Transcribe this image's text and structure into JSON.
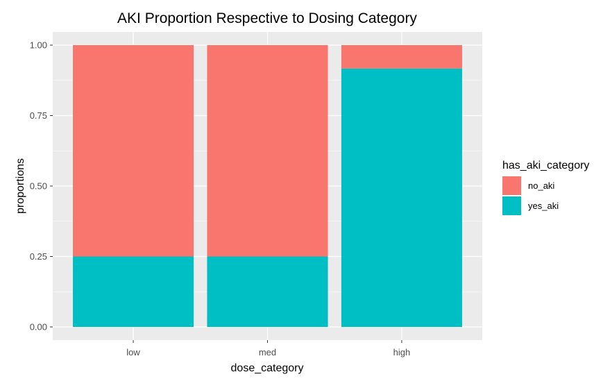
{
  "chart_data": {
    "type": "bar",
    "stacked": true,
    "title": "AKI Proportion Respective to Dosing Category",
    "xlabel": "dose_category",
    "ylabel": "proportions",
    "categories": [
      "low",
      "med",
      "high"
    ],
    "series": [
      {
        "name": "no_aki",
        "values": [
          0.75,
          0.75,
          0.083
        ],
        "color": "#F8766D"
      },
      {
        "name": "yes_aki",
        "values": [
          0.25,
          0.25,
          0.917
        ],
        "color": "#00BFC4"
      }
    ],
    "ylim": [
      0,
      1
    ],
    "yticks": [
      0,
      0.25,
      0.5,
      0.75,
      1
    ],
    "ytick_labels": [
      "0.00",
      "0.25",
      "0.50",
      "0.75",
      "1.00"
    ],
    "grid": true,
    "legend": {
      "title": "has_aki_category",
      "position": "right"
    },
    "panel_background": "#EBEBEB"
  }
}
